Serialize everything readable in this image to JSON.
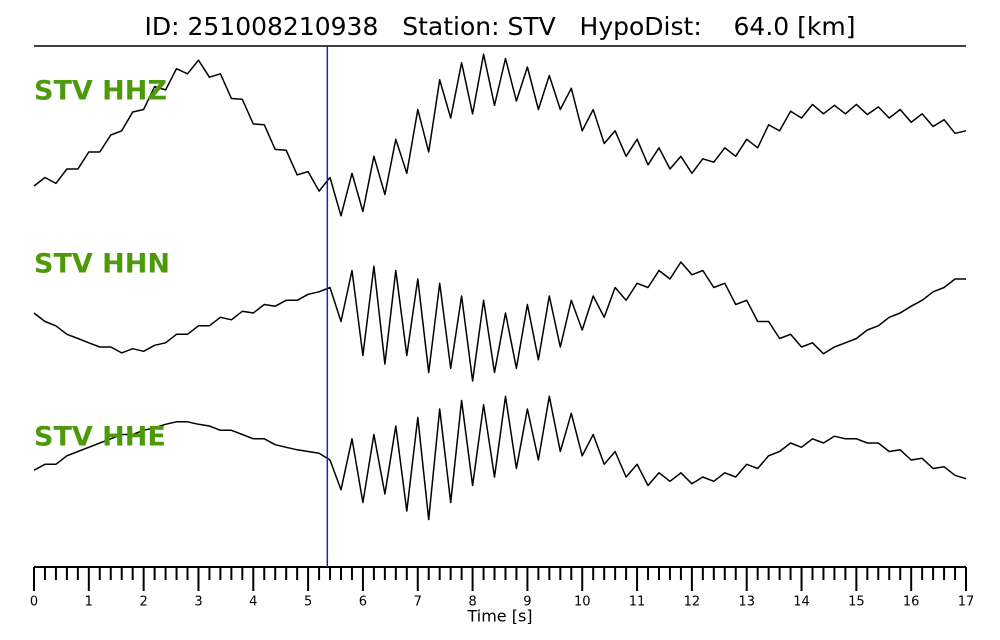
{
  "chart_data": {
    "type": "line",
    "title": "ID: 251008210938   Station: STV   HypoDist:    64.0 [km]",
    "xlabel": "Time [s]",
    "xlim": [
      0,
      17
    ],
    "xticks": [
      0,
      1,
      2,
      3,
      4,
      5,
      6,
      7,
      8,
      9,
      10,
      11,
      12,
      13,
      14,
      15,
      16,
      17
    ],
    "minor_xticks": [
      0.2,
      0.4,
      0.6,
      0.8,
      1.2,
      1.4,
      1.6,
      1.8,
      2.2,
      2.4,
      2.6,
      2.8,
      3.2,
      3.4,
      3.6,
      3.8,
      4.2,
      4.4,
      4.6,
      4.8,
      5.2,
      5.4,
      5.6,
      5.8,
      6.2,
      6.4,
      6.6,
      6.8,
      7.2,
      7.4,
      7.6,
      7.8,
      8.2,
      8.4,
      8.6,
      8.8,
      9.2,
      9.4,
      9.6,
      9.8,
      10.2,
      10.4,
      10.6,
      10.8,
      11.2,
      11.4,
      11.6,
      11.8,
      12.2,
      12.4,
      12.6,
      12.8,
      13.2,
      13.4,
      13.6,
      13.8,
      14.2,
      14.4,
      14.6,
      14.8,
      15.2,
      15.4,
      15.6,
      15.8,
      16.2,
      16.4,
      16.6,
      16.8
    ],
    "ylim": [
      -1,
      1
    ],
    "label_color": "#4c9a0a",
    "pick": {
      "x": 5.35,
      "color": "#1f1fc8"
    },
    "x": [
      0,
      0.2,
      0.4,
      0.6,
      0.8,
      1,
      1.2,
      1.4,
      1.6,
      1.8,
      2,
      2.2,
      2.4,
      2.6,
      2.8,
      3,
      3.2,
      3.4,
      3.6,
      3.8,
      4,
      4.2,
      4.4,
      4.6,
      4.8,
      5,
      5.2,
      5.4,
      5.6,
      5.8,
      6,
      6.2,
      6.4,
      6.6,
      6.8,
      7,
      7.2,
      7.4,
      7.6,
      7.8,
      8,
      8.2,
      8.4,
      8.6,
      8.8,
      9,
      9.2,
      9.4,
      9.6,
      9.8,
      10,
      10.2,
      10.4,
      10.6,
      10.8,
      11,
      11.2,
      11.4,
      11.6,
      11.8,
      12,
      12.2,
      12.4,
      12.6,
      12.8,
      13,
      13.2,
      13.4,
      13.6,
      13.8,
      14,
      14.2,
      14.4,
      14.6,
      14.8,
      15,
      15.2,
      15.4,
      15.6,
      15.8,
      16,
      16.2,
      16.4,
      16.6,
      16.8,
      17
    ],
    "series": [
      {
        "name": "STV HHZ",
        "color": "#000000",
        "values": [
          -0.6,
          -0.5,
          -0.57,
          -0.4,
          -0.4,
          -0.2,
          -0.2,
          0.0,
          0.05,
          0.27,
          0.3,
          0.57,
          0.53,
          0.78,
          0.72,
          0.88,
          0.68,
          0.72,
          0.43,
          0.42,
          0.13,
          0.12,
          -0.17,
          -0.18,
          -0.47,
          -0.43,
          -0.66,
          -0.5,
          -0.95,
          -0.45,
          -0.9,
          -0.25,
          -0.7,
          -0.05,
          -0.45,
          0.3,
          -0.2,
          0.65,
          0.2,
          0.85,
          0.25,
          0.95,
          0.35,
          0.9,
          0.4,
          0.8,
          0.3,
          0.7,
          0.3,
          0.55,
          0.05,
          0.3,
          -0.1,
          0.05,
          -0.25,
          -0.05,
          -0.35,
          -0.15,
          -0.4,
          -0.25,
          -0.45,
          -0.28,
          -0.32,
          -0.15,
          -0.25,
          -0.05,
          -0.15,
          0.12,
          0.05,
          0.28,
          0.2,
          0.36,
          0.25,
          0.35,
          0.25,
          0.36,
          0.24,
          0.33,
          0.2,
          0.3,
          0.15,
          0.25,
          0.1,
          0.18,
          0.02,
          0.05
        ]
      },
      {
        "name": "STV HHN",
        "color": "#000000",
        "values": [
          0.2,
          0.1,
          0.05,
          -0.05,
          -0.1,
          -0.15,
          -0.2,
          -0.2,
          -0.27,
          -0.22,
          -0.25,
          -0.18,
          -0.15,
          -0.05,
          -0.05,
          0.05,
          0.05,
          0.15,
          0.12,
          0.22,
          0.2,
          0.3,
          0.28,
          0.35,
          0.35,
          0.42,
          0.45,
          0.5,
          0.1,
          0.7,
          -0.3,
          0.75,
          -0.4,
          0.7,
          -0.3,
          0.6,
          -0.5,
          0.55,
          -0.45,
          0.4,
          -0.6,
          0.35,
          -0.5,
          0.2,
          -0.45,
          0.3,
          -0.35,
          0.4,
          -0.2,
          0.35,
          0.0,
          0.4,
          0.15,
          0.5,
          0.35,
          0.55,
          0.5,
          0.7,
          0.6,
          0.8,
          0.65,
          0.7,
          0.5,
          0.55,
          0.3,
          0.35,
          0.1,
          0.1,
          -0.1,
          -0.05,
          -0.2,
          -0.15,
          -0.28,
          -0.2,
          -0.15,
          -0.1,
          0.0,
          0.05,
          0.15,
          0.2,
          0.28,
          0.35,
          0.45,
          0.5,
          0.6,
          0.6
        ]
      },
      {
        "name": "STV HHE",
        "color": "#000000",
        "values": [
          -0.12,
          -0.05,
          -0.05,
          0.05,
          0.1,
          0.15,
          0.2,
          0.25,
          0.3,
          0.3,
          0.35,
          0.38,
          0.42,
          0.45,
          0.45,
          0.42,
          0.4,
          0.35,
          0.35,
          0.3,
          0.25,
          0.25,
          0.18,
          0.15,
          0.12,
          0.1,
          0.08,
          0.0,
          -0.35,
          0.25,
          -0.5,
          0.3,
          -0.4,
          0.4,
          -0.6,
          0.5,
          -0.7,
          0.6,
          -0.5,
          0.7,
          -0.3,
          0.65,
          -0.2,
          0.75,
          -0.1,
          0.6,
          0.0,
          0.75,
          0.1,
          0.55,
          0.05,
          0.3,
          -0.05,
          0.1,
          -0.2,
          -0.05,
          -0.3,
          -0.15,
          -0.25,
          -0.15,
          -0.28,
          -0.2,
          -0.25,
          -0.15,
          -0.2,
          -0.05,
          -0.1,
          0.05,
          0.1,
          0.2,
          0.15,
          0.25,
          0.2,
          0.28,
          0.25,
          0.25,
          0.2,
          0.2,
          0.1,
          0.12,
          0.0,
          0.02,
          -0.1,
          -0.08,
          -0.18,
          -0.22
        ]
      }
    ]
  }
}
